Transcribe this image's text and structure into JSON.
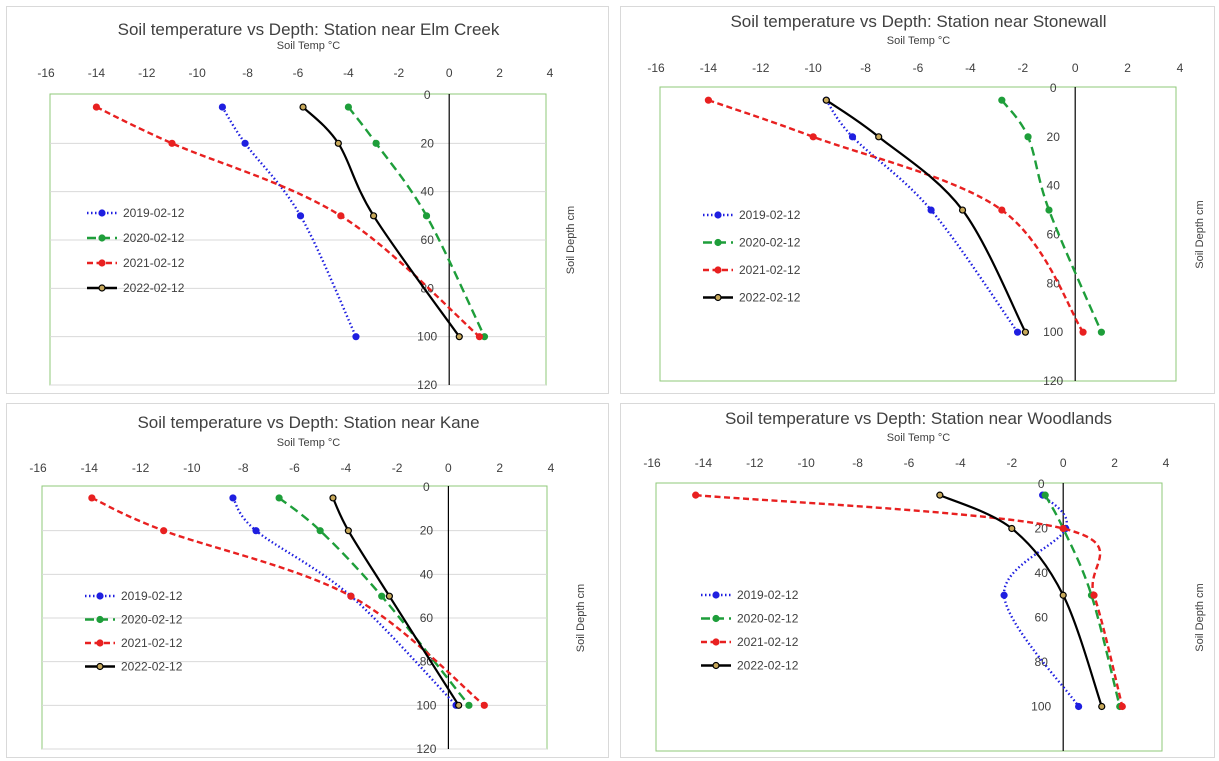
{
  "chart_data": [
    {
      "type": "line",
      "title": "Soil temperature vs Depth: Station near Elm Creek",
      "xlabel": "Soil Temp °C",
      "ylabel": "Soil Depth cm",
      "xlim": [
        -16,
        4
      ],
      "ylim": [
        0,
        120
      ],
      "y_reversed": true,
      "x_ticks": [
        -16,
        -14,
        -12,
        -10,
        -8,
        -6,
        -4,
        -2,
        0,
        2,
        4
      ],
      "y_ticks": [
        0,
        20,
        40,
        60,
        80,
        100,
        120
      ],
      "grid": true,
      "legend_position": "left",
      "series": [
        {
          "name": "2019-02-12",
          "color": "#1f1fe0",
          "style": "dotted",
          "points": [
            [
              -9.0,
              5
            ],
            [
              -8.1,
              20
            ],
            [
              -5.9,
              50
            ],
            [
              -3.7,
              100
            ]
          ]
        },
        {
          "name": "2020-02-12",
          "color": "#1e9e3a",
          "style": "long-dash",
          "points": [
            [
              -4.0,
              5
            ],
            [
              -2.9,
              20
            ],
            [
              -0.9,
              50
            ],
            [
              1.4,
              100
            ]
          ]
        },
        {
          "name": "2021-02-12",
          "color": "#e82020",
          "style": "dashed",
          "points": [
            [
              -14.0,
              5
            ],
            [
              -11.0,
              20
            ],
            [
              -4.3,
              50
            ],
            [
              1.2,
              100
            ]
          ]
        },
        {
          "name": "2022-02-12",
          "color": "#000000",
          "style": "solid",
          "points": [
            [
              -5.8,
              5
            ],
            [
              -4.4,
              20
            ],
            [
              -3.0,
              50
            ],
            [
              0.4,
              100
            ]
          ]
        }
      ]
    },
    {
      "type": "line",
      "title": "Soil temperature vs Depth: Station near Stonewall",
      "xlabel": "Soil Temp °C",
      "ylabel": "Soil Depth cm",
      "xlim": [
        -16,
        4
      ],
      "ylim": [
        0,
        120
      ],
      "y_reversed": true,
      "x_ticks": [
        -16,
        -14,
        -12,
        -10,
        -8,
        -6,
        -4,
        -2,
        0,
        2,
        4
      ],
      "y_ticks": [
        0,
        20,
        40,
        60,
        80,
        100,
        120
      ],
      "grid": false,
      "legend_position": "left",
      "series": [
        {
          "name": "2019-02-12",
          "color": "#1f1fe0",
          "style": "dotted",
          "points": [
            [
              -9.5,
              5
            ],
            [
              -8.5,
              20
            ],
            [
              -5.5,
              50
            ],
            [
              -2.2,
              100
            ]
          ]
        },
        {
          "name": "2020-02-12",
          "color": "#1e9e3a",
          "style": "long-dash",
          "points": [
            [
              -2.8,
              5
            ],
            [
              -1.8,
              20
            ],
            [
              -1.0,
              50
            ],
            [
              1.0,
              100
            ]
          ]
        },
        {
          "name": "2021-02-12",
          "color": "#e82020",
          "style": "dashed",
          "points": [
            [
              -14.0,
              5
            ],
            [
              -10.0,
              20
            ],
            [
              -2.8,
              50
            ],
            [
              0.3,
              100
            ]
          ]
        },
        {
          "name": "2022-02-12",
          "color": "#000000",
          "style": "solid",
          "points": [
            [
              -9.5,
              5
            ],
            [
              -7.5,
              20
            ],
            [
              -4.3,
              50
            ],
            [
              -1.9,
              100
            ]
          ]
        }
      ]
    },
    {
      "type": "line",
      "title": "Soil temperature vs Depth: Station near Kane",
      "xlabel": "Soil Temp °C",
      "ylabel": "Soil Depth cm",
      "xlim": [
        -16,
        4
      ],
      "ylim": [
        0,
        120
      ],
      "y_reversed": true,
      "x_ticks": [
        -16,
        -14,
        -12,
        -10,
        -8,
        -6,
        -4,
        -2,
        0,
        2,
        4
      ],
      "y_ticks": [
        0,
        20,
        40,
        60,
        80,
        100,
        120
      ],
      "grid": true,
      "legend_position": "left",
      "series": [
        {
          "name": "2019-02-12",
          "color": "#1f1fe0",
          "style": "dotted",
          "points": [
            [
              -8.4,
              5
            ],
            [
              -7.5,
              20
            ],
            [
              -3.8,
              50
            ],
            [
              0.3,
              100
            ]
          ]
        },
        {
          "name": "2020-02-12",
          "color": "#1e9e3a",
          "style": "long-dash",
          "points": [
            [
              -6.6,
              5
            ],
            [
              -5.0,
              20
            ],
            [
              -2.6,
              50
            ],
            [
              0.8,
              100
            ]
          ]
        },
        {
          "name": "2021-02-12",
          "color": "#e82020",
          "style": "dashed",
          "points": [
            [
              -13.9,
              5
            ],
            [
              -11.1,
              20
            ],
            [
              -3.8,
              50
            ],
            [
              1.4,
              100
            ]
          ]
        },
        {
          "name": "2022-02-12",
          "color": "#000000",
          "style": "solid",
          "points": [
            [
              -4.5,
              5
            ],
            [
              -3.9,
              20
            ],
            [
              -2.3,
              50
            ],
            [
              0.4,
              100
            ]
          ]
        }
      ]
    },
    {
      "type": "line",
      "title": "Soil temperature vs Depth: Station near Woodlands",
      "xlabel": "Soil Temp °C",
      "ylabel": "Soil Depth cm",
      "xlim": [
        -16,
        4
      ],
      "ylim": [
        0,
        120
      ],
      "y_reversed": true,
      "x_ticks": [
        -16,
        -14,
        -12,
        -10,
        -8,
        -6,
        -4,
        -2,
        0,
        2,
        4
      ],
      "y_ticks": [
        0,
        20,
        40,
        60,
        80,
        100
      ],
      "grid": false,
      "legend_position": "left",
      "series": [
        {
          "name": "2019-02-12",
          "color": "#1f1fe0",
          "style": "dotted",
          "points": [
            [
              -0.8,
              5
            ],
            [
              0.1,
              20
            ],
            [
              -2.3,
              50
            ],
            [
              0.6,
              100
            ]
          ]
        },
        {
          "name": "2020-02-12",
          "color": "#1e9e3a",
          "style": "long-dash",
          "points": [
            [
              -0.7,
              5
            ],
            [
              0.0,
              20
            ],
            [
              1.1,
              50
            ],
            [
              2.2,
              100
            ]
          ]
        },
        {
          "name": "2021-02-12",
          "color": "#e82020",
          "style": "dashed",
          "points": [
            [
              -14.3,
              5
            ],
            [
              0.0,
              20
            ],
            [
              1.2,
              50
            ],
            [
              2.3,
              100
            ]
          ]
        },
        {
          "name": "2022-02-12",
          "color": "#000000",
          "style": "solid",
          "points": [
            [
              -4.8,
              5
            ],
            [
              -2.0,
              20
            ],
            [
              0.0,
              50
            ],
            [
              1.5,
              100
            ]
          ]
        }
      ]
    }
  ]
}
